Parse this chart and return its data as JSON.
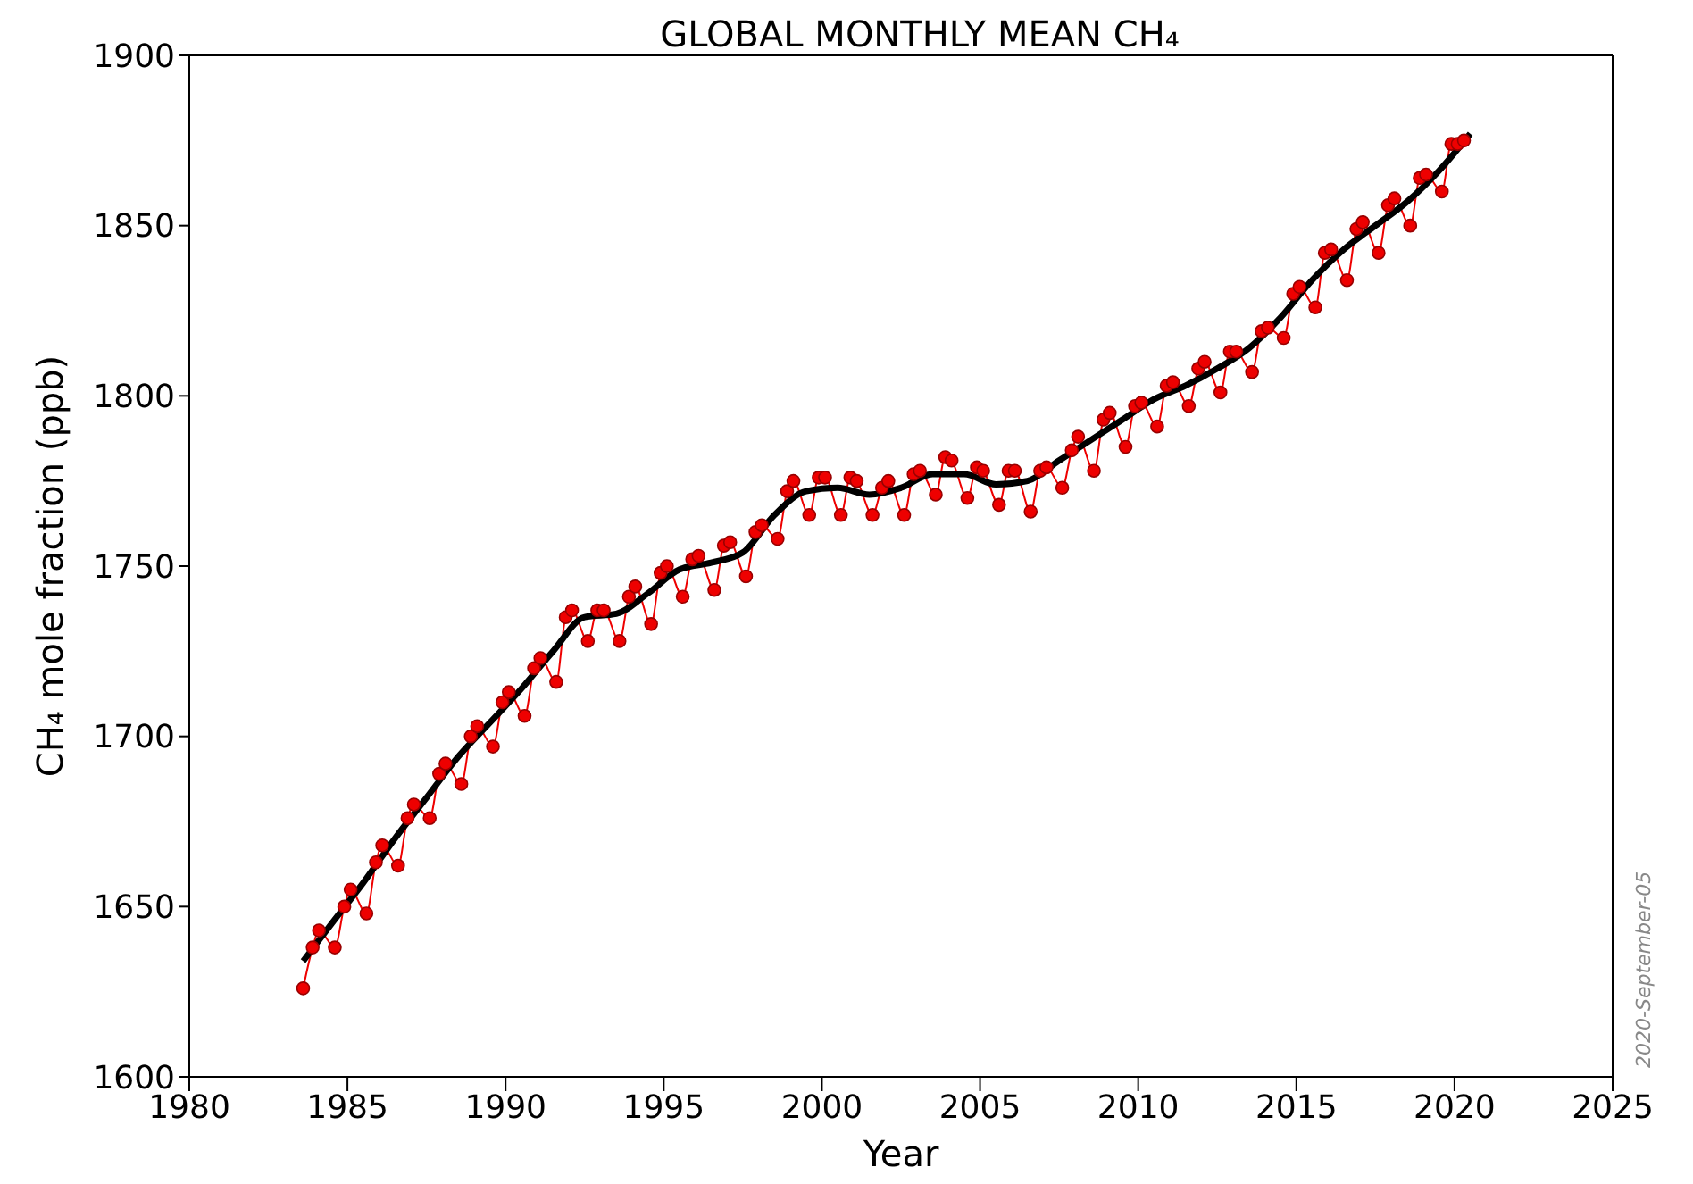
{
  "chart_data": {
    "type": "line",
    "title": "GLOBAL MONTHLY MEAN CH₄",
    "xlabel": "Year",
    "ylabel": "CH₄ mole fraction (ppb)",
    "annotations": [
      "2020-September-05"
    ],
    "xlim": [
      1980,
      2025
    ],
    "xticks": [
      1980,
      1985,
      1990,
      1995,
      2000,
      2005,
      2010,
      2015,
      2020,
      2025
    ],
    "ylim": [
      1600,
      1900
    ],
    "yticks": [
      1600,
      1650,
      1700,
      1750,
      1800,
      1850,
      1900
    ],
    "series": [
      {
        "color": "#ee0000",
        "marker": "circle",
        "x": [
          1983.6,
          1983.9,
          1984.1,
          1984.6,
          1984.9,
          1985.1,
          1985.6,
          1985.9,
          1986.1,
          1986.6,
          1986.9,
          1987.1,
          1987.6,
          1987.9,
          1988.1,
          1988.6,
          1988.9,
          1989.1,
          1989.6,
          1989.9,
          1990.1,
          1990.6,
          1990.9,
          1991.1,
          1991.6,
          1991.9,
          1992.1,
          1992.6,
          1992.9,
          1993.1,
          1993.6,
          1993.9,
          1994.1,
          1994.6,
          1994.9,
          1995.1,
          1995.6,
          1995.9,
          1996.1,
          1996.6,
          1996.9,
          1997.1,
          1997.6,
          1997.9,
          1998.1,
          1998.6,
          1998.9,
          1999.1,
          1999.6,
          1999.9,
          2000.1,
          2000.6,
          2000.9,
          2001.1,
          2001.6,
          2001.9,
          2002.1,
          2002.6,
          2002.9,
          2003.1,
          2003.6,
          2003.9,
          2004.1,
          2004.6,
          2004.9,
          2005.1,
          2005.6,
          2005.9,
          2006.1,
          2006.6,
          2006.9,
          2007.1,
          2007.6,
          2007.9,
          2008.1,
          2008.6,
          2008.9,
          2009.1,
          2009.6,
          2009.9,
          2010.1,
          2010.6,
          2010.9,
          2011.1,
          2011.6,
          2011.9,
          2012.1,
          2012.6,
          2012.9,
          2013.1,
          2013.6,
          2013.9,
          2014.1,
          2014.6,
          2014.9,
          2015.1,
          2015.6,
          2015.9,
          2016.1,
          2016.6,
          2016.9,
          2017.1,
          2017.6,
          2017.9,
          2018.1,
          2018.6,
          2018.9,
          2019.1,
          2019.6,
          2019.9,
          2020.1,
          2020.3
        ],
        "values": [
          1626,
          1638,
          1643,
          1638,
          1650,
          1655,
          1648,
          1663,
          1668,
          1662,
          1676,
          1680,
          1676,
          1689,
          1692,
          1686,
          1700,
          1703,
          1697,
          1710,
          1713,
          1706,
          1720,
          1723,
          1716,
          1735,
          1737,
          1728,
          1737,
          1737,
          1728,
          1741,
          1744,
          1733,
          1748,
          1750,
          1741,
          1752,
          1753,
          1743,
          1756,
          1757,
          1747,
          1760,
          1762,
          1758,
          1772,
          1775,
          1765,
          1776,
          1776,
          1765,
          1776,
          1775,
          1765,
          1773,
          1775,
          1765,
          1777,
          1778,
          1771,
          1782,
          1781,
          1770,
          1779,
          1778,
          1768,
          1778,
          1778,
          1766,
          1778,
          1779,
          1773,
          1784,
          1788,
          1778,
          1793,
          1795,
          1785,
          1797,
          1798,
          1791,
          1803,
          1804,
          1797,
          1808,
          1810,
          1801,
          1813,
          1813,
          1807,
          1819,
          1820,
          1817,
          1830,
          1832,
          1826,
          1842,
          1843,
          1834,
          1849,
          1851,
          1842,
          1856,
          1858,
          1850,
          1864,
          1865,
          1860,
          1874,
          1874,
          1875
        ]
      },
      {
        "color": "#000000",
        "marker": "none",
        "x": [
          1983.6,
          1984.5,
          1985.5,
          1986.5,
          1987.5,
          1988.5,
          1989.5,
          1990.5,
          1991.5,
          1992.5,
          1993.5,
          1994.5,
          1995.5,
          1996.5,
          1997.5,
          1998.5,
          1999.5,
          2000.5,
          2001.5,
          2002.5,
          2003.5,
          2004.5,
          2005.5,
          2006.5,
          2007.5,
          2008.5,
          2009.5,
          2010.5,
          2011.5,
          2012.5,
          2013.5,
          2014.5,
          2015.5,
          2016.5,
          2017.5,
          2018.5,
          2019.5,
          2020.5
        ],
        "values": [
          1634,
          1645,
          1657,
          1670,
          1682,
          1694,
          1704,
          1714,
          1725,
          1735,
          1736,
          1742,
          1749,
          1751,
          1754,
          1765,
          1772,
          1773,
          1771,
          1773,
          1777,
          1777,
          1774,
          1775,
          1781,
          1787,
          1793,
          1799,
          1803,
          1808,
          1814,
          1823,
          1834,
          1843,
          1850,
          1857,
          1866,
          1877
        ]
      }
    ]
  }
}
